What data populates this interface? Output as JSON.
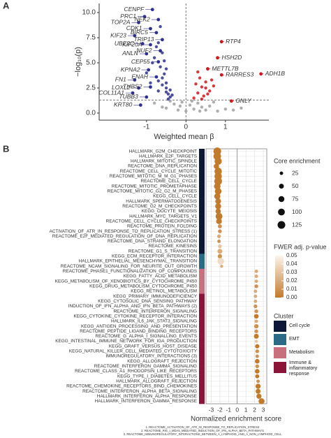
{
  "chart_data": [
    {
      "type": "scatter",
      "panel": "A",
      "xlabel": "Weighted mean β",
      "ylabel": "−log₁₀(p)",
      "xlim": [
        -2.2,
        2.1
      ],
      "ylim": [
        -0.7,
        10.9
      ],
      "xticks": [
        -1,
        0,
        1
      ],
      "yticks": [
        {
          "value": 0,
          "label": "0.0"
        },
        {
          "value": 2.5,
          "label": "2.5"
        },
        {
          "value": 5,
          "label": "5.0"
        },
        {
          "value": 7.5,
          "label": "7.5"
        },
        {
          "value": 10,
          "label": "10.0"
        }
      ],
      "hline": 1.3,
      "vline": 0,
      "series": [
        {
          "color": "#a0a0a0",
          "x": [
            -0.5,
            -0.3,
            -0.2,
            -0.1,
            0,
            0.1,
            0.2,
            0.3,
            0.4,
            0.5,
            0.6,
            0.8,
            1.0,
            -0.4,
            -0.6,
            -0.8,
            0.15,
            -0.15,
            0.35,
            0.7,
            1.2,
            1.4
          ],
          "y": [
            0.5,
            0.9,
            0.3,
            1.1,
            0.2,
            0.8,
            0.4,
            1.0,
            0.6,
            0.3,
            0.7,
            0.2,
            0.4,
            1.2,
            0.6,
            1.0,
            1.2,
            0.7,
            0.2,
            1.1,
            0.3,
            0.5
          ]
        },
        {
          "color": "#2e2f8e",
          "x": [
            -0.4,
            -0.5,
            -0.6,
            -0.7,
            -0.55,
            -0.45,
            -0.65,
            -0.8,
            -0.5,
            -0.6,
            -0.7,
            -0.9,
            -0.4,
            -0.5,
            -0.75,
            -0.85,
            -0.6,
            -0.55,
            -0.45,
            -0.7,
            -1.0,
            -0.35,
            -0.5,
            -0.65
          ],
          "y": [
            1.6,
            2.1,
            2.8,
            3.2,
            3.9,
            1.9,
            4.6,
            5.5,
            2.5,
            6.0,
            7.0,
            3.0,
            2.3,
            4.4,
            6.6,
            5.0,
            3.5,
            5.2,
            1.4,
            2.2,
            4.0,
            1.8,
            3.0,
            8.6
          ]
        },
        {
          "color": "#d0161b",
          "x": [
            0.2,
            0.3,
            0.4,
            0.5,
            0.35,
            0.6,
            0.45,
            0.25,
            0.7,
            0.55,
            0.3,
            0.4,
            0.65,
            0.5
          ],
          "y": [
            1.5,
            2.0,
            2.6,
            3.1,
            3.5,
            2.2,
            1.7,
            2.9,
            2.7,
            1.9,
            4.1,
            1.4,
            3.3,
            2.5
          ]
        }
      ],
      "annotations": [
        {
          "text": "CENPF",
          "x": -0.85,
          "y": 10.3
        },
        {
          "text": "PRC1",
          "x": -1.05,
          "y": 9.6
        },
        {
          "text": "NEK2",
          "x": -0.7,
          "y": 9.3
        },
        {
          "text": "TOP2A",
          "x": -1.2,
          "y": 9.0
        },
        {
          "text": "CDK1",
          "x": -0.9,
          "y": 8.4
        },
        {
          "text": "BIRC5",
          "x": -0.75,
          "y": 8.0
        },
        {
          "text": "KIF23",
          "x": -1.3,
          "y": 7.7
        },
        {
          "text": "TRIP13",
          "x": -0.6,
          "y": 7.3
        },
        {
          "text": "UBE2C",
          "x": -1.1,
          "y": 6.9
        },
        {
          "text": "KIF20A",
          "x": -0.9,
          "y": 6.8
        },
        {
          "text": "NUF2",
          "x": -0.65,
          "y": 6.2
        },
        {
          "text": "ANLN",
          "x": -1.0,
          "y": 5.9
        },
        {
          "text": "CEP55",
          "x": -0.7,
          "y": 5.1
        },
        {
          "text": "KPNA2",
          "x": -0.95,
          "y": 4.3
        },
        {
          "text": "ENAH",
          "x": -0.75,
          "y": 3.6
        },
        {
          "text": "FN1",
          "x": -1.3,
          "y": 3.3
        },
        {
          "text": "LOXL2",
          "x": -1.2,
          "y": 2.5
        },
        {
          "text": "THBS2",
          "x": -0.9,
          "y": 2.6
        },
        {
          "text": "COL11A1",
          "x": -1.35,
          "y": 2.0
        },
        {
          "text": "TUBB3",
          "x": -1.0,
          "y": 1.6
        },
        {
          "text": "KRT80",
          "x": -1.15,
          "y": 0.8
        },
        {
          "text": "RTP4",
          "x": 0.9,
          "y": 7.1
        },
        {
          "text": "HSH2D",
          "x": 0.8,
          "y": 5.5
        },
        {
          "text": "METTL7B",
          "x": 0.55,
          "y": 4.4
        },
        {
          "text": "RARRES3",
          "x": 0.9,
          "y": 3.8
        },
        {
          "text": "ADH1B",
          "x": 1.9,
          "y": 3.9
        },
        {
          "text": "GNLY",
          "x": 1.15,
          "y": 1.2
        }
      ]
    },
    {
      "type": "dot",
      "panel": "B",
      "xlabel": "Normalized enrichment score",
      "xlim": [
        -3.6,
        3.4
      ],
      "xticks": [
        -3,
        -2,
        -1,
        0,
        1,
        2,
        3
      ],
      "categories": [
        "HALLMARK_G2M_CHECKPOINT",
        "HALLMARK_E2F_TARGETS",
        "HALLMARK_MITOTIC_SPINDLE",
        "REACTOME_DNA_REPLICATION",
        "REACTOME_CELL_CYCLE_MITOTIC",
        "REACTOME_MITOTIC_M_M_G1_PHASES",
        "REACTOME_CELL_CYCLE",
        "REACTOME_MITOTIC_PROMETAPHASE",
        "REACTOME_MITOTIC_G2_G2_M_PHASES",
        "KEGG_CELL_CYCLE",
        "HALLMARK_SPERMATOGENESIS",
        "REACTOME_G2_M_CHECKPOINTS",
        "KEGG_OOCYTE_MEIOSIS",
        "HALLMARK_MYC_TARGETS_V1",
        "REACTOME_CELL_CYCLE_CHECKPOINTS",
        "REACTOME_PROTEIN_FOLDING",
        "ACTIVATION_OF_ATR_IN_RESPONSE_TO_REPLICATION_STRESS (1)",
        "REACTOME_E2F_MEDIATED_REGULATION_OF_DNA_REPLICATION",
        "REACTOME_DNA_STRAND_ELONGATION",
        "REACTOME_KINESINS",
        "REACTOME_G1_S_TRANSITION",
        "KEGG_ECM_RECEPTOR_INTERACTION",
        "HALLMARK_EPITHELIAL_MESENCHYMAL_TRANSITION",
        "REACTOME_NCAM_SIGNALING_FOR_NEURITE_OUT_GROWTH",
        "REACTOME_PHASE1_FUNCTIONALIZATION_OF_COMPOUNDS",
        "KEGG_FATTY_ACID_METABOLISM",
        "KEGG_METABOLISM_OF_XENOBIOTICS_BY_CYTOCHROME_P450",
        "KEGG_DRUG_METABOLISM_CYTOCHROME_P450",
        "KEGG_RETINOL_METABOLISM",
        "KEGG_PRIMARY_IMMUNODEFICIENCY",
        "KEGG_CYTOSOLIC_DNA_SENSING_PATHWAY",
        "INDUCTION_OF_IFN_ALPHA_AND_IFN_BETA_PATHWAYS (2)",
        "REACTOME_INTERFERON_SIGNALING",
        "KEGG_CYTOKINE_CYTOKINE_RECEPTOR_INTERACTION",
        "HALLMARK_IL6_JAK_STAT3_SIGNALING",
        "KEGG_ANTIGEN_PROCESSING_AND_PRESENTATION",
        "REACTOME_PEPTIDE_LIGAND_BINDING_RECEPTORS",
        "REACTOME_G_ALPHA_I_SIGNALLING_EVENTS",
        "KEGG_INTESTINAL_IMMUNE_NETWORK_FOR_IGA_PRODUCTION",
        "KEGG_GRAFT_VERSUS_HOST_DISEASE",
        "KEGG_NATURAL_KILLER_CELL_MEDIATED_CYTOTOXICITY",
        "IMMUNOREGULATORY_INTERACTIONS (3)",
        "KEGG_ALLOGRAFT_REJECTION",
        "REACTOME_INTERFERON_GAMMA_SIGNALING",
        "REACTOME_CLASS_A1_RHODOPSIN_LIKE_RECEPTORS",
        "KEGG_TYPE_I_DIABETES_MELLITUS",
        "HALLMARK_ALLOGRAFT_REJECTION",
        "REACTOME_CHEMOKINE_RECEPTORS_BIND_CHEMOKINES",
        "REACTOME_INTERFERON_ALPHA_BETA_SIGNALING",
        "HALLMARK_INTERFERON_ALPHA_RESPONSE",
        "HALLMARK_INTERFERON_GAMMA_RESPONSE"
      ],
      "values": [
        -2.3,
        -2.3,
        -2.2,
        -2.4,
        -2.2,
        -2.2,
        -2.2,
        -2.3,
        -2.2,
        -2.3,
        -2.2,
        -2.2,
        -2.2,
        -2.1,
        -2.1,
        -2.0,
        -2.0,
        -2.1,
        -2.1,
        -2.0,
        -2.0,
        -2.0,
        -1.9,
        -1.8,
        2.2,
        2.2,
        2.2,
        2.2,
        2.1,
        2.1,
        2.1,
        2.1,
        2.2,
        2.2,
        2.2,
        2.2,
        2.2,
        2.2,
        2.2,
        2.3,
        2.3,
        2.3,
        2.3,
        2.3,
        2.3,
        2.3,
        2.4,
        2.4,
        2.4,
        2.5,
        2.8
      ],
      "sizes": [
        125,
        120,
        110,
        60,
        115,
        115,
        125,
        90,
        95,
        80,
        70,
        75,
        60,
        100,
        70,
        35,
        30,
        30,
        25,
        30,
        50,
        40,
        95,
        20,
        25,
        25,
        25,
        30,
        25,
        25,
        25,
        30,
        30,
        45,
        25,
        40,
        30,
        50,
        20,
        40,
        30,
        25,
        45,
        30,
        45,
        35,
        25,
        55,
        50,
        55,
        75
      ],
      "fwer": [
        0,
        0,
        0,
        0,
        0,
        0,
        0,
        0,
        0,
        0,
        0,
        0,
        0,
        0,
        0,
        0.01,
        0.01,
        0.02,
        0.01,
        0.03,
        0.02,
        0.01,
        0.04,
        0.02,
        0.02,
        0.02,
        0.02,
        0.01,
        0.02,
        0.02,
        0.02,
        0.01,
        0.01,
        0,
        0.02,
        0.01,
        0.01,
        0,
        0.03,
        0,
        0.01,
        0.01,
        0,
        0.01,
        0,
        0,
        0.01,
        0,
        0,
        0,
        0
      ],
      "row_cluster": [
        "Cell cycle",
        "Cell cycle",
        "Cell cycle",
        "Cell cycle",
        "Cell cycle",
        "Cell cycle",
        "Cell cycle",
        "Cell cycle",
        "Cell cycle",
        "Cell cycle",
        "Cell cycle",
        "Cell cycle",
        "Cell cycle",
        "Cell cycle",
        "Cell cycle",
        "Cell cycle",
        "Cell cycle",
        "Cell cycle",
        "Cell cycle",
        "Cell cycle",
        "Cell cycle",
        "EMT",
        "EMT",
        "EMT",
        "Metabolism",
        "Metabolism",
        "Metabolism",
        "Metabolism",
        "Metabolism",
        "Immune & inflammatory response",
        "Immune & inflammatory response",
        "Immune & inflammatory response",
        "Immune & inflammatory response",
        "Immune & inflammatory response",
        "Immune & inflammatory response",
        "Immune & inflammatory response",
        "Immune & inflammatory response",
        "Immune & inflammatory response",
        "Immune & inflammatory response",
        "Immune & inflammatory response",
        "Immune & inflammatory response",
        "Immune & inflammatory response",
        "Immune & inflammatory response",
        "Immune & inflammatory response",
        "Immune & inflammatory response",
        "Immune & inflammatory response",
        "Immune & inflammatory response",
        "Immune & inflammatory response",
        "Immune & inflammatory response",
        "Immune & inflammatory response",
        "Immune & inflammatory response"
      ],
      "size_legend": {
        "title": "Core enrichment",
        "values": [
          25,
          50,
          75,
          100,
          125
        ]
      },
      "color_legend": {
        "title": "FWER adj. p-value",
        "lim": [
          0,
          0.05
        ],
        "colors": [
          "#c27a2c",
          "#fcf4ec"
        ],
        "ticks": [
          {
            "value": 0,
            "label": "0.00"
          },
          {
            "value": 0.01,
            "label": "0.01"
          },
          {
            "value": 0.02,
            "label": "0.02"
          },
          {
            "value": 0.03,
            "label": "0.03"
          },
          {
            "value": 0.04,
            "label": "0.04"
          },
          {
            "value": 0.05,
            "label": "0.05"
          }
        ]
      },
      "clusters": {
        "title": "Cluster",
        "items": [
          {
            "name": "Cell cycle",
            "color": "#0d1838"
          },
          {
            "name": "EMT",
            "color": "#2c6b86"
          },
          {
            "name": "Metabolism",
            "color": "#c8707e"
          },
          {
            "name": "Immune & inflammatory response",
            "color": "#8a1538"
          }
        ]
      },
      "footnotes": [
        "1. REACTOME_ACTIVATION_OF_ATR_IN_RESPONSE_TO_REPLICATION_STRESS",
        "2. REACTOME_RIG_I_MDA5_MEDIATED_INDUCTION_OF_IFN_ALPHA_BETA_PATHWAYS",
        "3. REACTOME_IMMUNOREGULATORY_INTERACTIONS_BETWEEN_A_LYMPHOID_AND_A_NON_LYMPHOID_CELL"
      ]
    }
  ]
}
